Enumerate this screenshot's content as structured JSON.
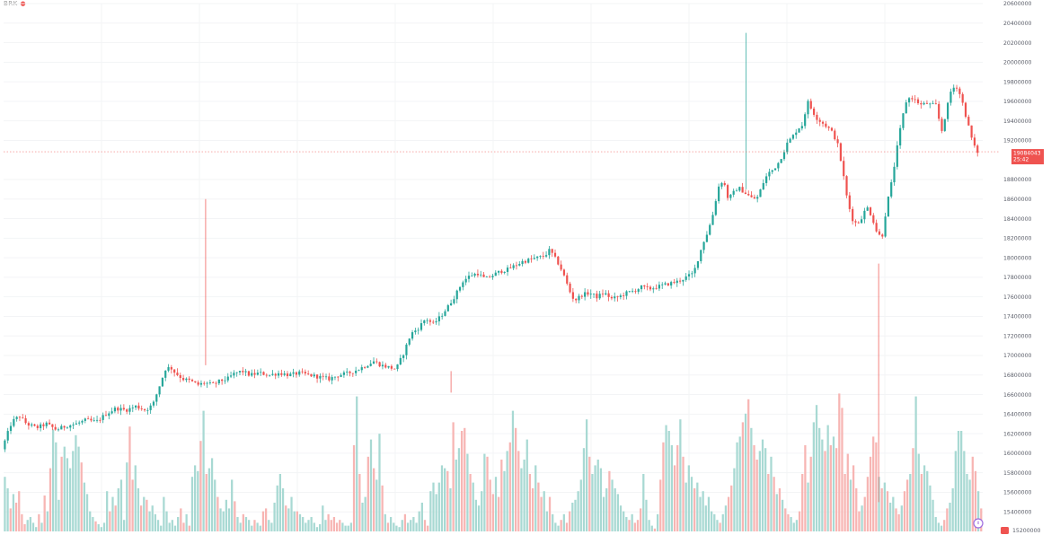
{
  "header": {
    "symbol_text": "BRK"
  },
  "chart_data": {
    "type": "candlestick",
    "y_axis": {
      "range": [
        15200000,
        20600000
      ],
      "ticks": [
        15400000,
        15600000,
        15800000,
        16000000,
        16200000,
        16400000,
        16600000,
        16800000,
        17000000,
        17200000,
        17400000,
        17600000,
        17800000,
        18000000,
        18200000,
        18400000,
        18600000,
        18800000,
        19200000,
        19400000,
        19600000,
        19800000,
        20000000,
        20200000,
        20400000,
        20600000
      ],
      "tick_labels": [
        "15400000",
        "15600000",
        "15800000",
        "16000000",
        "16200000",
        "16400000",
        "16600000",
        "16800000",
        "17000000",
        "17200000",
        "17400000",
        "17600000",
        "17800000",
        "18000000",
        "18200000",
        "18400000",
        "18600000",
        "18800000",
        "19200000",
        "19400000",
        "19600000",
        "19800000",
        "20000000",
        "20200000",
        "20400000",
        "20600000"
      ],
      "bottom_label": "15200000"
    },
    "current_price": {
      "value": 19084043,
      "label": "19084043",
      "countdown": "25:42"
    },
    "price_path": [
      [
        0,
        16040000
      ],
      [
        8,
        16320000
      ],
      [
        14,
        16380000
      ],
      [
        20,
        16300000
      ],
      [
        28,
        16260000
      ],
      [
        36,
        16300000
      ],
      [
        44,
        16240000
      ],
      [
        52,
        16280000
      ],
      [
        60,
        16300000
      ],
      [
        68,
        16340000
      ],
      [
        76,
        16320000
      ],
      [
        84,
        16400000
      ],
      [
        92,
        16460000
      ],
      [
        100,
        16440000
      ],
      [
        108,
        16480000
      ],
      [
        116,
        16440000
      ],
      [
        122,
        16500000
      ],
      [
        128,
        16720000
      ],
      [
        132,
        16860000
      ],
      [
        136,
        16880000
      ],
      [
        140,
        16820000
      ],
      [
        146,
        16760000
      ],
      [
        152,
        16740000
      ],
      [
        158,
        16700000
      ],
      [
        164,
        16720000
      ],
      [
        170,
        16700000
      ],
      [
        176,
        16740000
      ],
      [
        182,
        16760000
      ],
      [
        188,
        16820000
      ],
      [
        194,
        16840000
      ],
      [
        200,
        16800000
      ],
      [
        208,
        16820000
      ],
      [
        216,
        16800000
      ],
      [
        224,
        16820000
      ],
      [
        232,
        16800000
      ],
      [
        240,
        16820000
      ],
      [
        248,
        16800000
      ],
      [
        256,
        16780000
      ],
      [
        264,
        16760000
      ],
      [
        272,
        16800000
      ],
      [
        280,
        16820000
      ],
      [
        288,
        16860000
      ],
      [
        294,
        16900000
      ],
      [
        300,
        16940000
      ],
      [
        306,
        16900000
      ],
      [
        312,
        16880000
      ],
      [
        318,
        16860000
      ],
      [
        324,
        17020000
      ],
      [
        330,
        17220000
      ],
      [
        336,
        17280000
      ],
      [
        342,
        17380000
      ],
      [
        348,
        17320000
      ],
      [
        354,
        17400000
      ],
      [
        360,
        17500000
      ],
      [
        366,
        17620000
      ],
      [
        372,
        17760000
      ],
      [
        378,
        17820000
      ],
      [
        384,
        17840000
      ],
      [
        390,
        17780000
      ],
      [
        396,
        17820000
      ],
      [
        402,
        17860000
      ],
      [
        408,
        17880000
      ],
      [
        414,
        17920000
      ],
      [
        420,
        17960000
      ],
      [
        426,
        17980000
      ],
      [
        432,
        18000000
      ],
      [
        438,
        18020000
      ],
      [
        442,
        18080000
      ],
      [
        446,
        18000000
      ],
      [
        450,
        17920000
      ],
      [
        454,
        17800000
      ],
      [
        458,
        17660000
      ],
      [
        462,
        17560000
      ],
      [
        468,
        17620000
      ],
      [
        474,
        17640000
      ],
      [
        480,
        17600000
      ],
      [
        486,
        17640000
      ],
      [
        492,
        17580000
      ],
      [
        498,
        17600000
      ],
      [
        504,
        17640000
      ],
      [
        510,
        17660000
      ],
      [
        516,
        17700000
      ],
      [
        522,
        17680000
      ],
      [
        528,
        17700000
      ],
      [
        534,
        17720000
      ],
      [
        540,
        17740000
      ],
      [
        546,
        17760000
      ],
      [
        552,
        17800000
      ],
      [
        558,
        17840000
      ],
      [
        562,
        18000000
      ],
      [
        566,
        18160000
      ],
      [
        570,
        18280000
      ],
      [
        574,
        18460000
      ],
      [
        578,
        18720000
      ],
      [
        582,
        18800000
      ],
      [
        586,
        18600000
      ],
      [
        590,
        18660000
      ],
      [
        594,
        18720000
      ],
      [
        598,
        18680000
      ],
      [
        602,
        18640000
      ],
      [
        606,
        18600000
      ],
      [
        610,
        18620000
      ],
      [
        614,
        18760000
      ],
      [
        618,
        18860000
      ],
      [
        622,
        18900000
      ],
      [
        626,
        18960000
      ],
      [
        630,
        19060000
      ],
      [
        634,
        19180000
      ],
      [
        638,
        19240000
      ],
      [
        642,
        19320000
      ],
      [
        646,
        19360000
      ],
      [
        650,
        19600000
      ],
      [
        654,
        19500000
      ],
      [
        658,
        19420000
      ],
      [
        662,
        19380000
      ],
      [
        666,
        19340000
      ],
      [
        670,
        19280000
      ],
      [
        674,
        19180000
      ],
      [
        678,
        18920000
      ],
      [
        682,
        18600000
      ],
      [
        686,
        18400000
      ],
      [
        690,
        18340000
      ],
      [
        694,
        18420000
      ],
      [
        698,
        18520000
      ],
      [
        702,
        18420000
      ],
      [
        706,
        18260000
      ],
      [
        710,
        18200000
      ],
      [
        714,
        18540000
      ],
      [
        718,
        18780000
      ],
      [
        722,
        19100000
      ],
      [
        726,
        19400000
      ],
      [
        730,
        19620000
      ],
      [
        734,
        19640000
      ],
      [
        738,
        19600000
      ],
      [
        742,
        19560000
      ],
      [
        746,
        19580000
      ],
      [
        750,
        19560000
      ],
      [
        754,
        19560000
      ],
      [
        758,
        19280000
      ],
      [
        762,
        19500000
      ],
      [
        766,
        19720000
      ],
      [
        770,
        19760000
      ],
      [
        774,
        19640000
      ],
      [
        778,
        19440000
      ],
      [
        782,
        19240000
      ],
      [
        786,
        19084043
      ]
    ],
    "spikes": [
      {
        "pos": 162,
        "high": 18600000,
        "low": 16900000
      },
      {
        "pos": 360,
        "high": 16840000,
        "low": 16620000
      },
      {
        "pos": 598,
        "high": 20300000,
        "low": 18700000
      },
      {
        "pos": 705,
        "high": 17940000,
        "low": 15500000
      }
    ],
    "volume_bars": [
      0.38,
      0.3,
      0.16,
      0.26,
      0.2,
      0.28,
      0.12,
      0.05,
      0.08,
      0.1,
      0.06,
      0.03,
      0.12,
      0.06,
      0.25,
      0.14,
      0.44,
      0.71,
      0.62,
      0.22,
      0.52,
      0.59,
      0.51,
      0.44,
      0.56,
      0.67,
      0.59,
      0.48,
      0.34,
      0.26,
      0.14,
      0.1,
      0.07,
      0.05,
      0.03,
      0.06,
      0.28,
      0.14,
      0.24,
      0.18,
      0.3,
      0.36,
      0.08,
      0.48,
      0.73,
      0.36,
      0.46,
      0.3,
      0.18,
      0.24,
      0.22,
      0.14,
      0.18,
      0.12,
      0.08,
      0.04,
      0.24,
      0.14,
      0.06,
      0.08,
      0.04,
      0.1,
      0.16,
      0.06,
      0.12,
      0.04,
      0.38,
      0.46,
      0.42,
      0.63,
      0.84,
      0.4,
      0.44,
      0.51,
      0.36,
      0.24,
      0.16,
      0.14,
      0.22,
      0.16,
      0.36,
      0.21,
      0.1,
      0.06,
      0.12,
      0.1,
      0.08,
      0.04,
      0.08,
      0.06,
      0.04,
      0.14,
      0.16,
      0.08,
      0.06,
      0.2,
      0.32,
      0.4,
      0.3,
      0.18,
      0.16,
      0.24,
      0.14,
      0.14,
      0.12,
      0.1,
      0.06,
      0.08,
      0.1,
      0.06,
      0.03,
      0.05,
      0.18,
      0.08,
      0.12,
      0.08,
      0.1,
      0.06,
      0.08,
      0.06,
      0.04,
      0.04,
      0.06,
      0.6,
      0.94,
      0.4,
      0.2,
      0.24,
      0.52,
      0.64,
      0.44,
      0.36,
      0.68,
      0.32,
      0.12,
      0.06,
      0.1,
      0.06,
      0.04,
      0.03,
      0.08,
      0.12,
      0.06,
      0.08,
      0.1,
      0.06,
      0.14,
      0.2,
      0.08,
      0.04,
      0.28,
      0.34,
      0.26,
      0.34,
      0.46,
      0.44,
      0.42,
      0.3,
      0.76,
      0.5,
      0.58,
      0.7,
      0.72,
      0.54,
      0.4,
      0.34,
      0.22,
      0.18,
      0.28,
      0.54,
      0.52,
      0.36,
      0.26,
      0.38,
      0.24,
      0.5,
      0.42,
      0.56,
      0.62,
      0.84,
      0.72,
      0.56,
      0.44,
      0.5,
      0.64,
      0.4,
      0.3,
      0.46,
      0.34,
      0.24,
      0.28,
      0.14,
      0.24,
      0.12,
      0.06,
      0.04,
      0.08,
      0.12,
      0.06,
      0.14,
      0.2,
      0.22,
      0.28,
      0.36,
      0.58,
      0.78,
      0.52,
      0.4,
      0.46,
      0.5,
      0.44,
      0.24,
      0.3,
      0.42,
      0.36,
      0.3,
      0.26,
      0.18,
      0.14,
      0.1,
      0.08,
      0.12,
      0.06,
      0.08,
      0.16,
      0.4,
      0.22,
      0.08,
      0.04,
      0.02,
      0.12,
      0.36,
      0.62,
      0.74,
      0.7,
      0.6,
      0.46,
      0.6,
      0.78,
      0.52,
      0.34,
      0.46,
      0.38,
      0.3,
      0.34,
      0.24,
      0.28,
      0.18,
      0.24,
      0.14,
      0.12,
      0.08,
      0.06,
      0.12,
      0.18,
      0.24,
      0.32,
      0.44,
      0.62,
      0.66,
      0.76,
      0.82,
      0.92,
      0.72,
      0.6,
      0.5,
      0.56,
      0.64,
      0.58,
      0.4,
      0.52,
      0.38,
      0.26,
      0.3,
      0.22,
      0.16,
      0.12,
      0.1,
      0.06,
      0.08,
      0.14,
      0.4,
      0.6,
      0.34,
      0.52,
      0.76,
      0.88,
      0.72,
      0.64,
      0.56,
      0.74,
      0.6,
      0.66,
      0.58,
      0.96,
      0.86,
      0.4,
      0.54,
      0.36,
      0.46,
      0.3,
      0.14,
      0.18,
      0.24,
      0.38,
      0.52,
      0.66,
      0.62,
      0.38,
      0.3,
      0.34,
      0.28,
      0.2,
      0.24,
      0.16,
      0.12,
      0.18,
      0.28,
      0.36,
      0.4,
      0.58,
      0.94,
      0.54,
      0.4,
      0.46,
      0.42,
      0.32,
      0.22,
      0.1,
      0.06,
      0.04,
      0.08,
      0.16,
      0.2,
      0.3,
      0.56,
      0.7,
      0.7,
      0.56,
      0.4,
      0.36,
      0.52,
      0.42,
      0.28,
      0.16
    ],
    "colors": {
      "up": "#26a69a",
      "down": "#ef5350",
      "up_volume": "#a8d9d3",
      "down_volume": "#f7b5b3",
      "price_line": "#ef5350",
      "grid": "#f3f4f6",
      "axis_text": "#5d606b"
    },
    "grid": true
  }
}
